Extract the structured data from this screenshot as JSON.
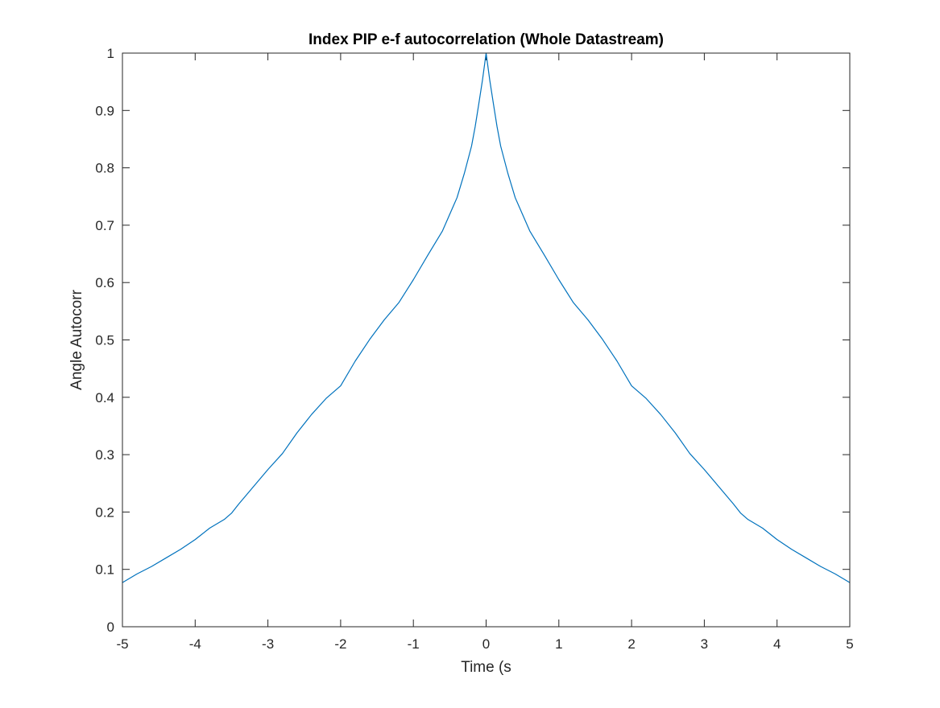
{
  "chart_data": {
    "type": "line",
    "title": "Index PIP e-f autocorrelation (Whole Datastream)",
    "xlabel": "Time (s",
    "ylabel": "Angle Autocorr",
    "xlim": [
      -5,
      5
    ],
    "ylim": [
      0,
      1
    ],
    "xticks": [
      "-5",
      "-4",
      "-3",
      "-2",
      "-1",
      "0",
      "1",
      "2",
      "3",
      "4",
      "5"
    ],
    "yticks": [
      "0",
      "0.1",
      "0.2",
      "0.3",
      "0.4",
      "0.5",
      "0.6",
      "0.7",
      "0.8",
      "0.9",
      "1"
    ],
    "grid": false,
    "legend": "none",
    "series_color": "#0072BD",
    "series": [
      {
        "x": [
          -5.0,
          -4.8,
          -4.6,
          -4.4,
          -4.2,
          -4.0,
          -3.8,
          -3.6,
          -3.5,
          -3.4,
          -3.2,
          -3.0,
          -2.8,
          -2.6,
          -2.4,
          -2.2,
          -2.0,
          -1.8,
          -1.6,
          -1.4,
          -1.2,
          -1.0,
          -0.8,
          -0.6,
          -0.4,
          -0.3,
          -0.2,
          -0.15,
          -0.1,
          -0.05,
          0.0,
          0.05,
          0.1,
          0.15,
          0.2,
          0.3,
          0.4,
          0.6,
          0.8,
          1.0,
          1.2,
          1.4,
          1.6,
          1.8,
          2.0,
          2.2,
          2.4,
          2.6,
          2.8,
          3.0,
          3.2,
          3.4,
          3.5,
          3.6,
          3.8,
          4.0,
          4.2,
          4.4,
          4.6,
          4.8,
          5.0
        ],
        "y": [
          0.077,
          0.092,
          0.105,
          0.12,
          0.135,
          0.152,
          0.172,
          0.187,
          0.198,
          0.214,
          0.244,
          0.274,
          0.302,
          0.338,
          0.37,
          0.398,
          0.42,
          0.463,
          0.501,
          0.535,
          0.565,
          0.605,
          0.648,
          0.69,
          0.748,
          0.79,
          0.838,
          0.872,
          0.912,
          0.953,
          1.0,
          0.953,
          0.912,
          0.872,
          0.838,
          0.79,
          0.748,
          0.69,
          0.648,
          0.605,
          0.565,
          0.535,
          0.501,
          0.463,
          0.42,
          0.398,
          0.37,
          0.338,
          0.302,
          0.274,
          0.244,
          0.214,
          0.198,
          0.187,
          0.172,
          0.152,
          0.135,
          0.12,
          0.105,
          0.092,
          0.077
        ]
      }
    ]
  }
}
